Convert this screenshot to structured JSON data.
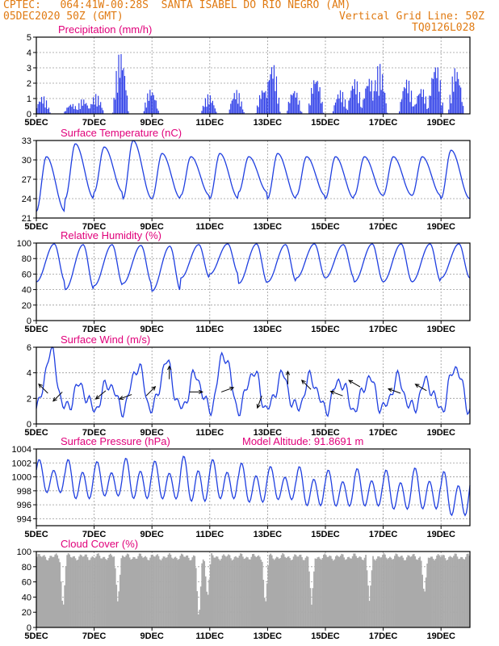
{
  "header": {
    "line1_left": "CPTEC:   064:41W-00:28S  SANTA ISABEL DO RIO NEGRO (AM)",
    "line2_left": "05DEC2020 50Z (GMT)",
    "line2_right": "Vertical Grid Line: 50Z",
    "line3_right": "TQ0126L028"
  },
  "colors": {
    "header": "#e07a12",
    "panel_title": "#e0007a",
    "line": "#1f3fe0",
    "bar": "#2f3fe8",
    "cloud": "#aaaaaa",
    "arrow": "#000000"
  },
  "chart_data": [
    {
      "type": "bar",
      "title": "Precipitation (mm/h)",
      "x_tick_labels": [
        "5DEC",
        "7DEC",
        "9DEC",
        "11DEC",
        "13DEC",
        "15DEC",
        "17DEC",
        "19DEC"
      ],
      "x_range_days": [
        0,
        15
      ],
      "ylim": [
        0,
        5
      ],
      "y_ticks": [
        0,
        1,
        2,
        3,
        4,
        5
      ],
      "grid": true,
      "bursts": [
        {
          "day": 0.2,
          "peak": 1.2
        },
        {
          "day": 1.2,
          "peak": 0.7
        },
        {
          "day": 1.6,
          "peak": 1.0
        },
        {
          "day": 2.05,
          "peak": 1.3
        },
        {
          "day": 2.9,
          "peak": 4.2
        },
        {
          "day": 3.95,
          "peak": 1.7
        },
        {
          "day": 5.95,
          "peak": 1.3
        },
        {
          "day": 6.9,
          "peak": 1.6
        },
        {
          "day": 7.85,
          "peak": 1.8
        },
        {
          "day": 8.15,
          "peak": 3.5
        },
        {
          "day": 8.9,
          "peak": 1.7
        },
        {
          "day": 9.65,
          "peak": 2.6
        },
        {
          "day": 10.5,
          "peak": 1.6
        },
        {
          "day": 11.0,
          "peak": 2.4
        },
        {
          "day": 11.5,
          "peak": 2.5
        },
        {
          "day": 11.85,
          "peak": 3.3
        },
        {
          "day": 12.8,
          "peak": 2.4
        },
        {
          "day": 13.3,
          "peak": 1.8
        },
        {
          "day": 13.8,
          "peak": 3.5
        },
        {
          "day": 14.5,
          "peak": 3.2
        }
      ]
    },
    {
      "type": "line",
      "title": "Surface Temperature (nC)",
      "x_tick_labels": [
        "5DEC",
        "7DEC",
        "9DEC",
        "11DEC",
        "13DEC",
        "15DEC",
        "17DEC",
        "19DEC"
      ],
      "ylim": [
        21,
        33
      ],
      "y_ticks": [
        21,
        24,
        27,
        30,
        33
      ],
      "grid": true,
      "daily_max": [
        30.5,
        32.5,
        32.0,
        33.0,
        31.0,
        30.5,
        31.0,
        30.5,
        31.0,
        30.5,
        30.5,
        30.5,
        30.5,
        30.5,
        31.5
      ],
      "daily_min": [
        22.0,
        24.0,
        25.0,
        24.0,
        24.0,
        24.5,
        24.0,
        25.0,
        24.0,
        24.5,
        24.0,
        24.5,
        24.5,
        24.5,
        24.0
      ]
    },
    {
      "type": "line",
      "title": "Relative Humidity (%)",
      "x_tick_labels": [
        "5DEC",
        "7DEC",
        "9DEC",
        "11DEC",
        "13DEC",
        "15DEC",
        "17DEC",
        "19DEC"
      ],
      "ylim": [
        0,
        100
      ],
      "y_ticks": [
        0,
        20,
        40,
        60,
        80,
        100
      ],
      "grid": true,
      "daily_max": [
        99,
        98,
        98,
        97,
        96,
        98,
        99,
        99,
        98,
        99,
        98,
        99,
        99,
        99,
        99
      ],
      "daily_min": [
        50,
        40,
        45,
        48,
        38,
        55,
        60,
        48,
        50,
        55,
        55,
        50,
        50,
        50,
        55
      ]
    },
    {
      "type": "line",
      "title": "Surface Wind (m/s)",
      "x_tick_labels": [
        "5DEC",
        "7DEC",
        "9DEC",
        "11DEC",
        "13DEC",
        "15DEC",
        "17DEC",
        "19DEC"
      ],
      "ylim": [
        0,
        6
      ],
      "y_ticks": [
        0,
        2,
        4,
        6
      ],
      "grid": true,
      "speed_peaks": [
        5.6,
        3.0,
        3.2,
        4.5,
        4.8,
        3.8,
        5.5,
        4.1,
        3.8,
        3.6,
        3.4,
        3.6,
        3.5,
        3.3,
        4.5
      ],
      "arrows": [
        {
          "day": 0.4,
          "speed": 2.4,
          "dir_deg": 315
        },
        {
          "day": 0.9,
          "speed": 2.5,
          "dir_deg": 225
        },
        {
          "day": 2.4,
          "speed": 2.6,
          "dir_deg": 230
        },
        {
          "day": 3.3,
          "speed": 2.3,
          "dir_deg": 250
        },
        {
          "day": 3.8,
          "speed": 2.2,
          "dir_deg": 45
        },
        {
          "day": 4.6,
          "speed": 3.5,
          "dir_deg": 0
        },
        {
          "day": 5.3,
          "speed": 2.5,
          "dir_deg": 90
        },
        {
          "day": 6.4,
          "speed": 2.5,
          "dir_deg": 70
        },
        {
          "day": 7.8,
          "speed": 2.2,
          "dir_deg": 200
        },
        {
          "day": 8.7,
          "speed": 3.1,
          "dir_deg": 0
        },
        {
          "day": 9.5,
          "speed": 2.7,
          "dir_deg": 315
        },
        {
          "day": 10.6,
          "speed": 2.2,
          "dir_deg": 290
        },
        {
          "day": 11.2,
          "speed": 2.9,
          "dir_deg": 300
        },
        {
          "day": 12.6,
          "speed": 2.4,
          "dir_deg": 290
        },
        {
          "day": 13.5,
          "speed": 2.6,
          "dir_deg": 300
        }
      ]
    },
    {
      "type": "line",
      "title": "Surface Pressure (hPa)",
      "annotation": "Model Altitude: 91.8691 m",
      "x_tick_labels": [
        "5DEC",
        "7DEC",
        "9DEC",
        "11DEC",
        "13DEC",
        "15DEC",
        "17DEC",
        "19DEC"
      ],
      "ylim": [
        993,
        1004
      ],
      "y_ticks": [
        994,
        996,
        998,
        1000,
        1002,
        1004
      ],
      "grid": true,
      "semidiurnal_max": [
        1002.5,
        1002.5,
        1002.2,
        1002.7,
        1002.3,
        1003.0,
        1002.5,
        1002.0,
        1001.5,
        1001.5,
        1001.0,
        1001.2,
        1001.0,
        1001.3,
        1000.8
      ],
      "semidiurnal_min": [
        997.0,
        996.0,
        996.5,
        996.0,
        996.0,
        995.5,
        996.0,
        995.5,
        996.0,
        995.0,
        995.0,
        995.0,
        994.5,
        994.5,
        993.5
      ]
    },
    {
      "type": "bar",
      "title": "Cloud Cover (%)",
      "x_tick_labels": [
        "5DEC",
        "7DEC",
        "9DEC",
        "11DEC",
        "13DEC",
        "15DEC",
        "17DEC",
        "19DEC"
      ],
      "ylim": [
        0,
        100
      ],
      "y_ticks": [
        0,
        20,
        40,
        60,
        80,
        100
      ],
      "grid": true,
      "typical_percent": 93,
      "low_dips": [
        {
          "day": 0.9,
          "percent": 20
        },
        {
          "day": 2.8,
          "percent": 30
        },
        {
          "day": 5.6,
          "percent": 5
        },
        {
          "day": 5.9,
          "percent": 35
        },
        {
          "day": 7.9,
          "percent": 25
        },
        {
          "day": 9.5,
          "percent": 30
        },
        {
          "day": 11.5,
          "percent": 35
        },
        {
          "day": 13.4,
          "percent": 40
        }
      ]
    }
  ]
}
